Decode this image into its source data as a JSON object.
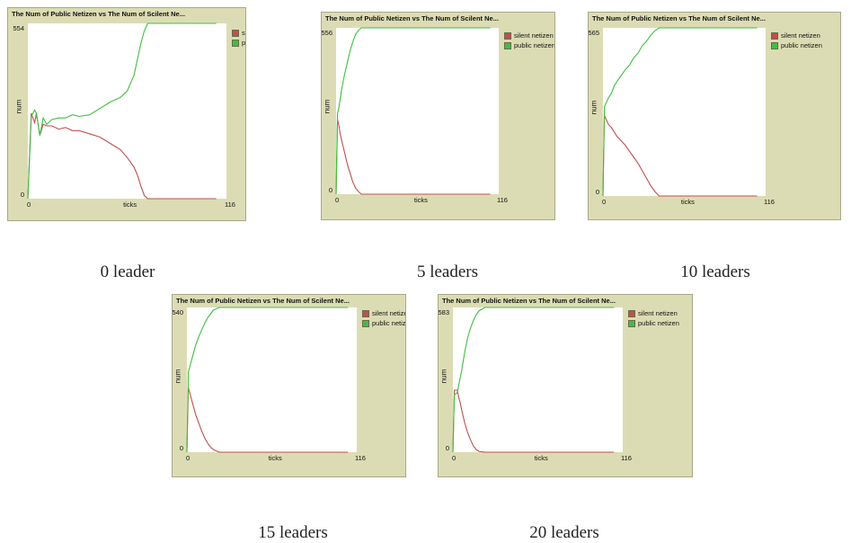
{
  "colors": {
    "panel_bg": "#dcdcb4",
    "plot_bg": "#ffffff",
    "silent": "#c0504d",
    "public": "#3fbf3f"
  },
  "chart_data": [
    {
      "type": "line",
      "title": "The Num of Public Netizen vs The Num of Scilent Ne...",
      "xlabel": "ticks",
      "ylabel": "num",
      "xlim": [
        0,
        116
      ],
      "ylim": [
        0,
        554
      ],
      "ymax_label": "554",
      "ymin_label": "0",
      "xmin_label": "0",
      "xmax_label": "116",
      "legend_position": "right",
      "caption": "0 leader",
      "series": [
        {
          "name": "silent netizen",
          "color": "#c0504d",
          "x": [
            0,
            2,
            4,
            5,
            7,
            9,
            11,
            14,
            18,
            22,
            26,
            30,
            36,
            42,
            48,
            54,
            58,
            62,
            64,
            66,
            68,
            70,
            110
          ],
          "y": [
            0,
            270,
            240,
            270,
            200,
            235,
            230,
            230,
            220,
            225,
            215,
            215,
            205,
            195,
            175,
            155,
            130,
            100,
            75,
            40,
            10,
            0,
            0
          ]
        },
        {
          "name": "public netizen",
          "color": "#3fbf3f",
          "x": [
            0,
            2,
            4,
            5,
            7,
            9,
            11,
            14,
            18,
            22,
            26,
            30,
            36,
            42,
            48,
            54,
            58,
            62,
            64,
            66,
            68,
            70,
            110
          ],
          "y": [
            0,
            260,
            280,
            270,
            200,
            255,
            235,
            250,
            255,
            255,
            265,
            260,
            265,
            285,
            305,
            320,
            340,
            390,
            440,
            490,
            530,
            554,
            554
          ]
        }
      ]
    },
    {
      "type": "line",
      "title": "The Num of Public Netizen vs The Num of Scilent Ne...",
      "xlabel": "ticks",
      "ylabel": "num",
      "xlim": [
        0,
        116
      ],
      "ylim": [
        0,
        556
      ],
      "ymax_label": "556",
      "ymin_label": "0",
      "xmin_label": "0",
      "xmax_label": "116",
      "legend_position": "right",
      "caption": "5 leaders",
      "series": [
        {
          "name": "silent netizen",
          "color": "#c0504d",
          "x": [
            0,
            1,
            2,
            3,
            4,
            6,
            8,
            10,
            12,
            14,
            16,
            18,
            110
          ],
          "y": [
            0,
            250,
            230,
            200,
            180,
            140,
            100,
            70,
            40,
            20,
            8,
            0,
            0
          ]
        },
        {
          "name": "public netizen",
          "color": "#3fbf3f",
          "x": [
            0,
            1,
            2,
            3,
            4,
            6,
            8,
            10,
            12,
            14,
            16,
            18,
            110
          ],
          "y": [
            0,
            270,
            290,
            320,
            350,
            400,
            440,
            480,
            510,
            535,
            548,
            556,
            556
          ]
        }
      ]
    },
    {
      "type": "line",
      "title": "The Num of Public Netizen vs The Num of Scilent Ne...",
      "xlabel": "ticks",
      "ylabel": "num",
      "xlim": [
        0,
        116
      ],
      "ylim": [
        0,
        565
      ],
      "ymax_label": "565",
      "ymin_label": "0",
      "xmin_label": "0",
      "xmax_label": "116",
      "legend_position": "right",
      "caption": "10 leaders",
      "series": [
        {
          "name": "silent netizen",
          "color": "#c0504d",
          "x": [
            0,
            1,
            2,
            4,
            6,
            8,
            10,
            13,
            16,
            19,
            22,
            25,
            28,
            31,
            34,
            37,
            40,
            110
          ],
          "y": [
            0,
            270,
            260,
            240,
            230,
            215,
            200,
            185,
            170,
            150,
            130,
            110,
            85,
            60,
            35,
            15,
            0,
            0
          ]
        },
        {
          "name": "public netizen",
          "color": "#3fbf3f",
          "x": [
            0,
            1,
            2,
            4,
            6,
            8,
            10,
            13,
            16,
            19,
            22,
            25,
            28,
            31,
            34,
            37,
            40,
            110
          ],
          "y": [
            0,
            300,
            310,
            330,
            345,
            370,
            385,
            405,
            425,
            440,
            465,
            480,
            505,
            520,
            540,
            555,
            565,
            565
          ]
        }
      ]
    },
    {
      "type": "line",
      "title": "The Num of Public Netizen vs The Num of Scilent Ne...",
      "xlabel": "ticks",
      "ylabel": "num",
      "xlim": [
        0,
        116
      ],
      "ylim": [
        0,
        540
      ],
      "ymax_label": "540",
      "ymin_label": "0",
      "xmin_label": "0",
      "xmax_label": "116",
      "legend_position": "right",
      "caption": "15 leaders",
      "series": [
        {
          "name": "silent netizen",
          "color": "#c0504d",
          "x": [
            0,
            1,
            2,
            3,
            4,
            6,
            8,
            10,
            12,
            14,
            16,
            18,
            22,
            110
          ],
          "y": [
            0,
            240,
            220,
            200,
            180,
            140,
            110,
            80,
            55,
            35,
            20,
            10,
            0,
            0
          ]
        },
        {
          "name": "public netizen",
          "color": "#3fbf3f",
          "x": [
            0,
            1,
            2,
            3,
            4,
            6,
            8,
            10,
            12,
            14,
            16,
            18,
            22,
            110
          ],
          "y": [
            0,
            300,
            320,
            340,
            360,
            400,
            430,
            455,
            480,
            500,
            515,
            530,
            540,
            540
          ]
        }
      ]
    },
    {
      "type": "line",
      "title": "The Num of Public Netizen vs The Num of Scilent Ne...",
      "xlabel": "ticks",
      "ylabel": "num",
      "xlim": [
        0,
        116
      ],
      "ylim": [
        0,
        583
      ],
      "ymax_label": "583",
      "ymin_label": "0",
      "xmin_label": "0",
      "xmax_label": "116",
      "legend_position": "right",
      "caption": "20 leaders",
      "series": [
        {
          "name": "silent netizen",
          "color": "#c0504d",
          "x": [
            0,
            1,
            3,
            4,
            5,
            6,
            8,
            10,
            12,
            14,
            16,
            18,
            22,
            110
          ],
          "y": [
            0,
            250,
            250,
            220,
            200,
            170,
            120,
            80,
            50,
            25,
            10,
            3,
            0,
            0
          ]
        },
        {
          "name": "public netizen",
          "color": "#3fbf3f",
          "x": [
            0,
            1,
            3,
            4,
            5,
            6,
            8,
            10,
            12,
            14,
            16,
            18,
            22,
            110
          ],
          "y": [
            0,
            230,
            240,
            270,
            300,
            330,
            400,
            460,
            500,
            530,
            555,
            570,
            583,
            583
          ]
        }
      ]
    }
  ]
}
